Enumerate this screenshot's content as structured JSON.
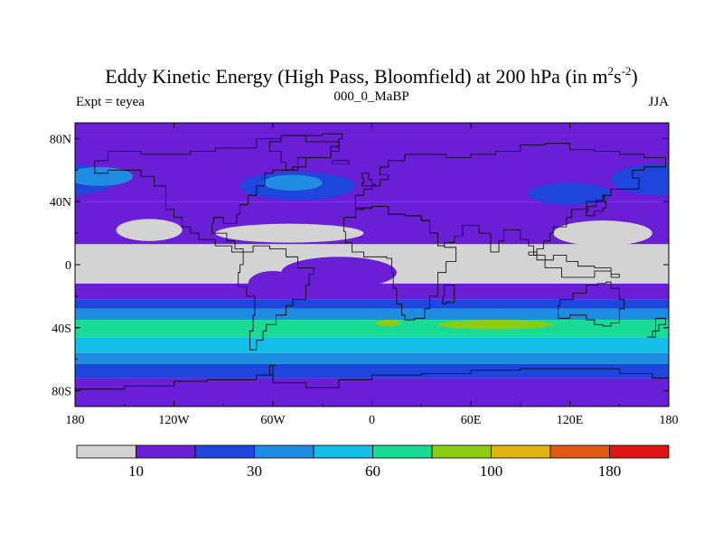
{
  "chart_data": {
    "type": "filled-contour-map",
    "title_main": "Eddy Kinetic Energy (High Pass, Bloomfield) at 200 hPa (in m",
    "title_sup1": "2",
    "title_mid": "s",
    "title_sup2": "-2",
    "title_end": ")",
    "subtitle_left": "Expt = teyea",
    "subtitle_center": "000_0_MaBP",
    "subtitle_right": "JJA",
    "x_range": [
      -180,
      180
    ],
    "y_range": [
      -90,
      90
    ],
    "x_ticks": [
      {
        "value": -180,
        "label": "180"
      },
      {
        "value": -120,
        "label": "120W"
      },
      {
        "value": -60,
        "label": "60W"
      },
      {
        "value": 0,
        "label": "0"
      },
      {
        "value": 60,
        "label": "60E"
      },
      {
        "value": 120,
        "label": "120E"
      },
      {
        "value": 180,
        "label": "180"
      }
    ],
    "y_ticks": [
      {
        "value": 80,
        "label": "80N"
      },
      {
        "value": 40,
        "label": "40N"
      },
      {
        "value": 0,
        "label": "0"
      },
      {
        "value": -40,
        "label": "40S"
      },
      {
        "value": -80,
        "label": "80S"
      }
    ],
    "colorbar": {
      "colors": [
        "#d3d3d3",
        "#6a1ed6",
        "#1e46dc",
        "#1e8ce0",
        "#14bee6",
        "#18dc96",
        "#8ccc12",
        "#e0b212",
        "#e25a12",
        "#e01414"
      ],
      "labels": [
        {
          "after_box": 1,
          "text": "10"
        },
        {
          "after_box": 3,
          "text": "30"
        },
        {
          "after_box": 5,
          "text": "60"
        },
        {
          "after_box": 7,
          "text": "100"
        },
        {
          "after_box": 9,
          "text": "180"
        }
      ]
    },
    "bands": [
      {
        "name": "arctic",
        "level": 1,
        "lat": [
          90,
          82
        ]
      },
      {
        "name": "nh-storm-track",
        "level": 1,
        "lat": [
          82,
          40
        ]
      },
      {
        "name": "subtropical-nh",
        "level": 1,
        "lat": [
          40,
          13
        ]
      },
      {
        "name": "tropics",
        "level": 0,
        "lat": [
          13,
          -12
        ]
      },
      {
        "name": "sh-subtropics",
        "level": 1,
        "lat": [
          -12,
          -22
        ]
      },
      {
        "name": "sh-low",
        "level": 2,
        "lat": [
          -22,
          -28
        ]
      },
      {
        "name": "sh-mid",
        "level": 3,
        "lat": [
          -28,
          -35
        ]
      },
      {
        "name": "sh-jet",
        "level": 5,
        "lat": [
          -35,
          -46
        ]
      },
      {
        "name": "sh-mid2",
        "level": 4,
        "lat": [
          -46,
          -56
        ]
      },
      {
        "name": "sh-outer",
        "level": 3,
        "lat": [
          -56,
          -63
        ]
      },
      {
        "name": "sh-high",
        "level": 2,
        "lat": [
          -63,
          -72
        ]
      },
      {
        "name": "antarctic",
        "level": 1,
        "lat": [
          -72,
          -90
        ]
      }
    ],
    "blobs": [
      {
        "name": "north-pacific-blob",
        "level": 2,
        "lon": 175,
        "lat": 54,
        "rlon": 30,
        "rlat": 10
      },
      {
        "name": "north-atlantic-blob",
        "level": 2,
        "lon": -45,
        "lat": 50,
        "rlon": 35,
        "rlat": 9
      },
      {
        "name": "north-pacific-core",
        "level": 3,
        "lon": -165,
        "lat": 56,
        "rlon": 20,
        "rlat": 6
      },
      {
        "name": "north-atlantic-core",
        "level": 3,
        "lon": -48,
        "lat": 52,
        "rlon": 18,
        "rlat": 5
      },
      {
        "name": "asia-blob",
        "level": 2,
        "lon": 120,
        "lat": 45,
        "rlon": 25,
        "rlat": 7
      },
      {
        "name": "indian-ocean-jet",
        "level": 6,
        "lon": 75,
        "lat": -38,
        "rlon": 35,
        "rlat": 3
      },
      {
        "name": "atlantic-jet-core",
        "level": 6,
        "lon": 10,
        "lat": -37,
        "rlon": 8,
        "rlat": 2
      }
    ],
    "gray_shapes": [
      {
        "name": "pacific-trade",
        "lon": -135,
        "lat": 22,
        "rlon": 20,
        "rlat": 7
      },
      {
        "name": "atlantic-trade",
        "lon": -50,
        "lat": 20,
        "rlon": 45,
        "rlat": 6
      },
      {
        "name": "west-pacific-warm",
        "lon": 140,
        "lat": 20,
        "rlon": 30,
        "rlat": 8
      }
    ],
    "purple_intrusions": [
      {
        "name": "equatorial-atlantic-purple",
        "lon": -20,
        "lat": -5,
        "rlon": 35,
        "rlat": 10
      },
      {
        "name": "south-america-purple",
        "lon": -60,
        "lat": -12,
        "rlon": 15,
        "rlat": 8
      }
    ],
    "coastlines": [
      {
        "name": "north-america-coastline",
        "points": [
          [
            -168,
            66
          ],
          [
            -160,
            72
          ],
          [
            -140,
            70
          ],
          [
            -125,
            70
          ],
          [
            -110,
            72
          ],
          [
            -95,
            74
          ],
          [
            -80,
            74
          ],
          [
            -70,
            80
          ],
          [
            -55,
            82
          ],
          [
            -40,
            78
          ],
          [
            -20,
            75
          ],
          [
            -25,
            68
          ],
          [
            -45,
            60
          ],
          [
            -60,
            58
          ],
          [
            -65,
            50
          ],
          [
            -70,
            44
          ],
          [
            -75,
            38
          ],
          [
            -80,
            32
          ],
          [
            -82,
            26
          ],
          [
            -90,
            30
          ],
          [
            -96,
            26
          ],
          [
            -97,
            20
          ],
          [
            -90,
            20
          ],
          [
            -88,
            15
          ],
          [
            -83,
            10
          ],
          [
            -78,
            8
          ],
          [
            -85,
            12
          ],
          [
            -95,
            16
          ],
          [
            -105,
            20
          ],
          [
            -110,
            24
          ],
          [
            -115,
            30
          ],
          [
            -120,
            35
          ],
          [
            -125,
            42
          ],
          [
            -125,
            50
          ],
          [
            -132,
            56
          ],
          [
            -140,
            60
          ],
          [
            -150,
            60
          ],
          [
            -160,
            58
          ],
          [
            -168,
            60
          ],
          [
            -168,
            66
          ]
        ]
      },
      {
        "name": "south-america-coastline",
        "points": [
          [
            -78,
            8
          ],
          [
            -72,
            12
          ],
          [
            -62,
            10
          ],
          [
            -52,
            5
          ],
          [
            -45,
            -2
          ],
          [
            -35,
            -6
          ],
          [
            -38,
            -13
          ],
          [
            -40,
            -22
          ],
          [
            -48,
            -26
          ],
          [
            -52,
            -32
          ],
          [
            -58,
            -38
          ],
          [
            -64,
            -42
          ],
          [
            -66,
            -48
          ],
          [
            -70,
            -54
          ],
          [
            -74,
            -50
          ],
          [
            -74,
            -42
          ],
          [
            -72,
            -32
          ],
          [
            -71,
            -20
          ],
          [
            -76,
            -14
          ],
          [
            -81,
            -5
          ],
          [
            -80,
            0
          ],
          [
            -78,
            8
          ]
        ]
      },
      {
        "name": "eurasia-coastline",
        "points": [
          [
            -10,
            36
          ],
          [
            -10,
            44
          ],
          [
            -5,
            48
          ],
          [
            0,
            50
          ],
          [
            5,
            54
          ],
          [
            10,
            57
          ],
          [
            5,
            62
          ],
          [
            10,
            66
          ],
          [
            20,
            70
          ],
          [
            30,
            70
          ],
          [
            45,
            68
          ],
          [
            60,
            70
          ],
          [
            75,
            72
          ],
          [
            90,
            76
          ],
          [
            105,
            77
          ],
          [
            120,
            73
          ],
          [
            135,
            72
          ],
          [
            150,
            70
          ],
          [
            165,
            68
          ],
          [
            178,
            66
          ],
          [
            178,
            62
          ],
          [
            165,
            60
          ],
          [
            158,
            55
          ],
          [
            162,
            48
          ],
          [
            145,
            44
          ],
          [
            140,
            40
          ],
          [
            130,
            35
          ],
          [
            121,
            30
          ],
          [
            118,
            24
          ],
          [
            110,
            20
          ],
          [
            108,
            15
          ],
          [
            104,
            10
          ],
          [
            100,
            6
          ],
          [
            98,
            12
          ],
          [
            95,
            16
          ],
          [
            90,
            22
          ],
          [
            80,
            15
          ],
          [
            77,
            8
          ],
          [
            72,
            20
          ],
          [
            65,
            25
          ],
          [
            57,
            25
          ],
          [
            55,
            18
          ],
          [
            50,
            14
          ],
          [
            44,
            12
          ],
          [
            40,
            20
          ],
          [
            35,
            28
          ],
          [
            30,
            31
          ],
          [
            20,
            32
          ],
          [
            10,
            37
          ],
          [
            0,
            36
          ],
          [
            -10,
            36
          ]
        ]
      },
      {
        "name": "africa-coastline",
        "points": [
          [
            -17,
            21
          ],
          [
            -16,
            14
          ],
          [
            -12,
            8
          ],
          [
            -5,
            5
          ],
          [
            5,
            5
          ],
          [
            9,
            4
          ],
          [
            12,
            -5
          ],
          [
            13,
            -15
          ],
          [
            15,
            -25
          ],
          [
            18,
            -32
          ],
          [
            20,
            -35
          ],
          [
            26,
            -34
          ],
          [
            32,
            -28
          ],
          [
            35,
            -20
          ],
          [
            40,
            -12
          ],
          [
            40,
            -5
          ],
          [
            45,
            2
          ],
          [
            51,
            11
          ],
          [
            44,
            12
          ],
          [
            40,
            20
          ],
          [
            35,
            28
          ],
          [
            30,
            31
          ],
          [
            20,
            32
          ],
          [
            10,
            37
          ],
          [
            0,
            36
          ],
          [
            -5,
            35
          ],
          [
            -10,
            30
          ],
          [
            -17,
            21
          ]
        ]
      },
      {
        "name": "australia-coastline",
        "points": [
          [
            114,
            -22
          ],
          [
            122,
            -18
          ],
          [
            130,
            -13
          ],
          [
            137,
            -12
          ],
          [
            142,
            -11
          ],
          [
            145,
            -15
          ],
          [
            150,
            -22
          ],
          [
            153,
            -28
          ],
          [
            150,
            -37
          ],
          [
            145,
            -39
          ],
          [
            140,
            -38
          ],
          [
            135,
            -35
          ],
          [
            130,
            -32
          ],
          [
            120,
            -34
          ],
          [
            115,
            -34
          ],
          [
            113,
            -26
          ],
          [
            114,
            -22
          ]
        ]
      },
      {
        "name": "greenland-coastline",
        "points": [
          [
            -55,
            82
          ],
          [
            -30,
            83
          ],
          [
            -18,
            80
          ],
          [
            -20,
            72
          ],
          [
            -25,
            68
          ],
          [
            -40,
            62
          ],
          [
            -48,
            60
          ],
          [
            -52,
            65
          ],
          [
            -55,
            72
          ],
          [
            -62,
            78
          ],
          [
            -55,
            82
          ]
        ]
      },
      {
        "name": "antarctica-coastline",
        "points": [
          [
            -180,
            -79
          ],
          [
            -150,
            -77
          ],
          [
            -120,
            -74
          ],
          [
            -100,
            -73
          ],
          [
            -80,
            -73
          ],
          [
            -70,
            -70
          ],
          [
            -60,
            -64
          ],
          [
            -58,
            -64
          ],
          [
            -62,
            -70
          ],
          [
            -60,
            -75
          ],
          [
            -40,
            -78
          ],
          [
            -20,
            -73
          ],
          [
            0,
            -70
          ],
          [
            30,
            -69
          ],
          [
            60,
            -67
          ],
          [
            90,
            -66
          ],
          [
            120,
            -66
          ],
          [
            150,
            -69
          ],
          [
            170,
            -72
          ],
          [
            180,
            -78
          ]
        ]
      },
      {
        "name": "new-zealand-coastline",
        "points": [
          [
            172,
            -34
          ],
          [
            178,
            -38
          ],
          [
            174,
            -42
          ],
          [
            170,
            -46
          ],
          [
            167,
            -46
          ],
          [
            172,
            -40
          ],
          [
            172,
            -34
          ]
        ]
      },
      {
        "name": "madagascar-coastline",
        "points": [
          [
            44,
            -13
          ],
          [
            50,
            -15
          ],
          [
            50,
            -24
          ],
          [
            45,
            -25
          ],
          [
            43,
            -20
          ],
          [
            44,
            -13
          ]
        ]
      },
      {
        "name": "maritime-continent-coastline",
        "points": [
          [
            95,
            6
          ],
          [
            105,
            -2
          ],
          [
            115,
            -8
          ],
          [
            125,
            -8
          ],
          [
            135,
            -4
          ],
          [
            145,
            -6
          ],
          [
            150,
            -8
          ],
          [
            145,
            -2
          ],
          [
            135,
            -1
          ],
          [
            125,
            2
          ],
          [
            118,
            6
          ],
          [
            110,
            3
          ],
          [
            100,
            8
          ],
          [
            95,
            6
          ]
        ]
      },
      {
        "name": "japan-coastline",
        "points": [
          [
            130,
            31
          ],
          [
            135,
            34
          ],
          [
            140,
            36
          ],
          [
            142,
            40
          ],
          [
            141,
            44
          ],
          [
            140,
            41
          ],
          [
            136,
            37
          ],
          [
            131,
            34
          ],
          [
            130,
            31
          ]
        ]
      },
      {
        "name": "uk-coastline",
        "points": [
          [
            -6,
            50
          ],
          [
            2,
            51
          ],
          [
            0,
            54
          ],
          [
            -2,
            58
          ],
          [
            -5,
            58
          ],
          [
            -6,
            55
          ],
          [
            -5,
            52
          ],
          [
            -6,
            50
          ]
        ]
      },
      {
        "name": "iceland-coastline",
        "points": [
          [
            -24,
            64
          ],
          [
            -14,
            64
          ],
          [
            -14,
            66
          ],
          [
            -22,
            66
          ],
          [
            -24,
            64
          ]
        ]
      }
    ]
  }
}
